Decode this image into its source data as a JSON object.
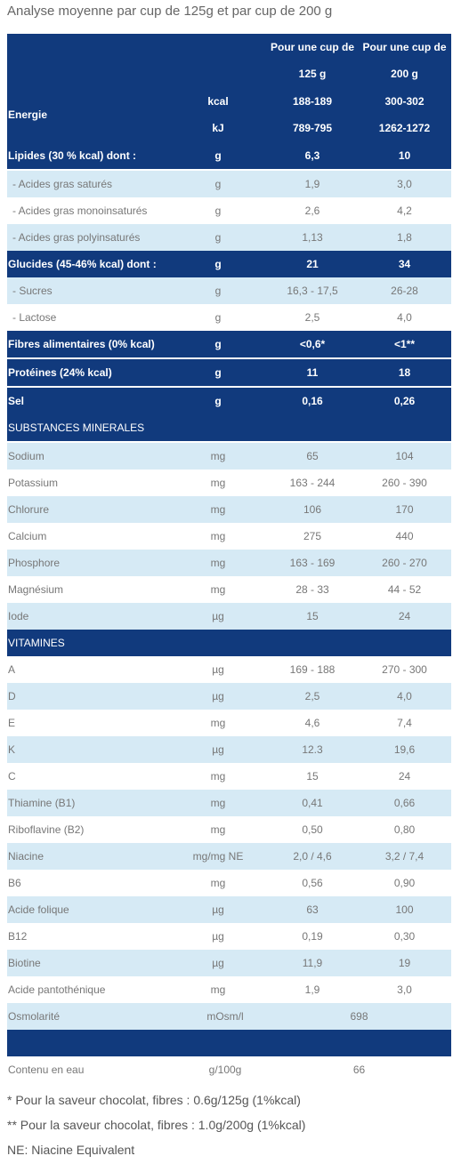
{
  "title": "Analyse moyenne par cup de 125g et par cup de 200 g",
  "table": {
    "header": [
      "Pour une cup de 125 g",
      "Pour une cup de 200 g"
    ],
    "rows": [
      [
        "Energie",
        [
          "kcal",
          "kJ"
        ],
        [
          "188-189",
          "789-795"
        ],
        [
          "300-302",
          "1262-1272"
        ]
      ],
      [
        "Lipides (30 % kcal) dont :",
        "g",
        "6,3",
        "10"
      ],
      [
        "- Acides gras saturés",
        "g",
        "1,9",
        "3,0"
      ],
      [
        "- Acides gras monoinsaturés",
        "g",
        "2,6",
        "4,2"
      ],
      [
        "- Acides gras polyinsaturés",
        "g",
        "1,13",
        "1,8"
      ],
      [
        "Glucides (45-46% kcal) dont :",
        "g",
        "21",
        "34"
      ],
      [
        "- Sucres",
        "g",
        "16,3 - 17,5",
        "26-28"
      ],
      [
        "- Lactose",
        "g",
        "2,5",
        "4,0"
      ],
      [
        "Fibres alimentaires (0% kcal)",
        "g",
        "<0,6*",
        "<1**"
      ],
      [
        "Protéines (24% kcal)",
        "g",
        "11",
        "18"
      ],
      [
        "Sel",
        "g",
        "0,16",
        "0,26"
      ],
      [
        "SUBSTANCES MINERALES"
      ],
      [
        "Sodium",
        "mg",
        "65",
        "104"
      ],
      [
        "Potassium",
        "mg",
        "163 - 244",
        "260 - 390"
      ],
      [
        "Chlorure",
        "mg",
        "106",
        "170"
      ],
      [
        "Calcium",
        "mg",
        "275",
        "440"
      ],
      [
        "Phosphore",
        "mg",
        "163 - 169",
        "260 - 270"
      ],
      [
        "Magnésium",
        "mg",
        "28 - 33",
        "44 - 52"
      ],
      [
        "Iode",
        "µg",
        "15",
        "24"
      ],
      [
        "VITAMINES"
      ],
      [
        "A",
        "µg",
        "169 - 188",
        "270 - 300"
      ],
      [
        "D",
        "µg",
        "2,5",
        "4,0"
      ],
      [
        "E",
        "mg",
        "4,6",
        "7,4"
      ],
      [
        "K",
        "µg",
        "12.3",
        "19,6"
      ],
      [
        "C",
        "mg",
        "15",
        "24"
      ],
      [
        "Thiamine (B1)",
        "mg",
        "0,41",
        "0,66"
      ],
      [
        "Riboflavine (B2)",
        "mg",
        "0,50",
        "0,80"
      ],
      [
        "Niacine",
        "mg/mg NE",
        "2,0 / 4,6",
        "3,2 / 7,4"
      ],
      [
        "B6",
        "mg",
        "0,56",
        "0,90"
      ],
      [
        "Acide folique",
        "µg",
        "63",
        "100"
      ],
      [
        "B12",
        "µg",
        "0,19",
        "0,30"
      ],
      [
        "Biotine",
        "µg",
        "11,9",
        "19"
      ],
      [
        "Acide pantothénique",
        "mg",
        "1,9",
        "3,0"
      ],
      [
        "Osmolarité",
        "mOsm/l",
        "698"
      ],
      [],
      [
        "Contenu en eau",
        "g/100g",
        "66"
      ]
    ]
  },
  "footnotes": [
    "* Pour la saveur chocolat, fibres : 0.6g/125g (1%kcal)",
    "** Pour la saveur chocolat, fibres : 1.0g/200g (1%kcal)",
    "NE: Niacine Equivalent"
  ]
}
